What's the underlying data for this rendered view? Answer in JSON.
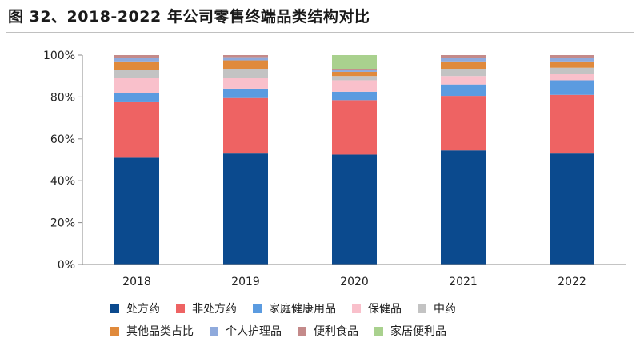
{
  "figure_title": "图 32、2018-2022 年公司零售终端品类结构对比",
  "chart_data": {
    "type": "bar",
    "stacked": true,
    "percent": true,
    "title": "图 32、2018-2022 年公司零售终端品类结构对比",
    "categories": [
      "2018",
      "2019",
      "2020",
      "2021",
      "2022"
    ],
    "ylim": [
      0,
      100
    ],
    "yticks": [
      0,
      20,
      40,
      60,
      80,
      100
    ],
    "ytick_labels": [
      "0%",
      "20%",
      "40%",
      "60%",
      "80%",
      "100%"
    ],
    "xlabel": "",
    "ylabel": "",
    "legend_position": "bottom",
    "series": [
      {
        "name": "处方药",
        "color": "#0B4A8E",
        "values": [
          51,
          53,
          52.5,
          54.5,
          53
        ]
      },
      {
        "name": "非处方药",
        "color": "#EE6363",
        "values": [
          26.5,
          26.5,
          26,
          26,
          28
        ]
      },
      {
        "name": "家庭健康用品",
        "color": "#5B9BE0",
        "values": [
          4.5,
          4.5,
          4,
          5.5,
          7
        ]
      },
      {
        "name": "保健品",
        "color": "#F9C0CB",
        "values": [
          7,
          5,
          5.5,
          4,
          3
        ]
      },
      {
        "name": "中药",
        "color": "#C3C3C3",
        "values": [
          4,
          4.5,
          2,
          3.5,
          3
        ]
      },
      {
        "name": "其他品类占比",
        "color": "#E08A3C",
        "values": [
          4,
          4,
          2,
          3.5,
          3
        ]
      },
      {
        "name": "个人护理品",
        "color": "#8FAADC",
        "values": [
          1.5,
          1.5,
          0.8,
          1.5,
          1.5
        ]
      },
      {
        "name": "便利食品",
        "color": "#C48A8A",
        "values": [
          1.5,
          1,
          0.7,
          1.5,
          1.5
        ]
      },
      {
        "name": "家居便利品",
        "color": "#A9D18E",
        "values": [
          0,
          0,
          6.5,
          0,
          0
        ]
      }
    ]
  }
}
